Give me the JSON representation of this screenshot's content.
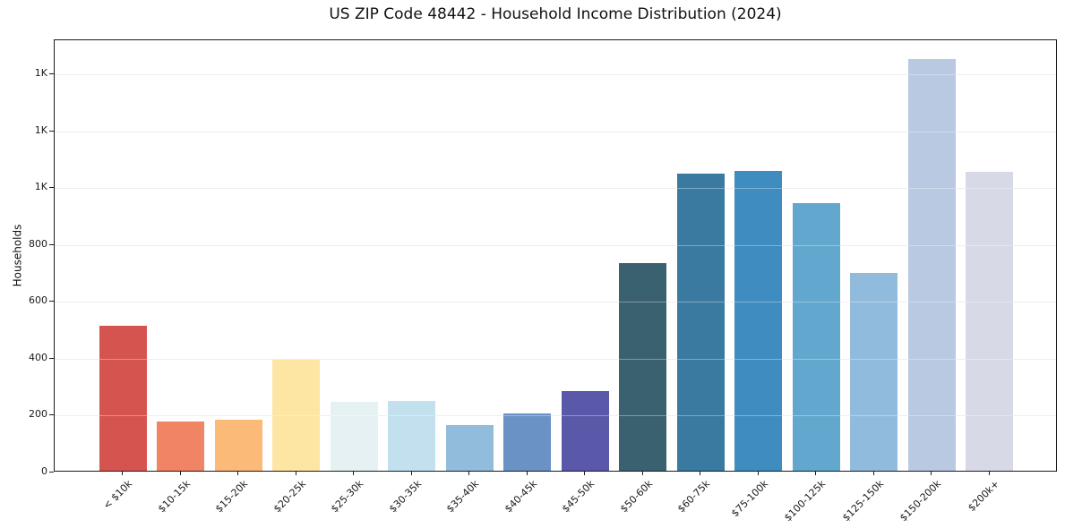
{
  "figure": {
    "background_color": "#ffffff",
    "axis_color": "#1a1a1a",
    "gridline_color": "#e7e7e7"
  },
  "chart_data": {
    "type": "bar",
    "title": "US ZIP Code 48442 - Household Income Distribution (2024)",
    "xlabel": "",
    "ylabel": "Households",
    "categories": [
      "< $10k",
      "$10-15k",
      "$15-20k",
      "$20-25k",
      "$25-30k",
      "$30-35k",
      "$35-40k",
      "$40-45k",
      "$45-50k",
      "$50-60k",
      "$60-75k",
      "$75-100k",
      "$100-125k",
      "$125-150k",
      "$150-200k",
      "$200k+"
    ],
    "values": [
      510,
      172,
      178,
      389,
      243,
      247,
      162,
      200,
      281,
      729,
      1046,
      1054,
      941,
      697,
      1448,
      1051
    ],
    "bar_colors": [
      "#d5544f",
      "#f08465",
      "#fcba78",
      "#fde5a4",
      "#e6f1f3",
      "#c3e0ee",
      "#92bcdb",
      "#6b92c5",
      "#5a58a9",
      "#3a616f",
      "#3a7aa0",
      "#3e8cc0",
      "#62a7cd",
      "#91bbdc",
      "#b9c9e1",
      "#d8d9e6"
    ],
    "ylim": [
      0,
      1520
    ],
    "yticks": {
      "values": [
        0,
        200,
        400,
        600,
        800,
        1000,
        1200,
        1400
      ],
      "labels": [
        "0",
        "200",
        "400",
        "600",
        "800",
        "1K",
        "1K",
        "1K"
      ]
    },
    "grid": "horizontal",
    "legend": "none",
    "x_tick_rotation_deg": 45
  }
}
